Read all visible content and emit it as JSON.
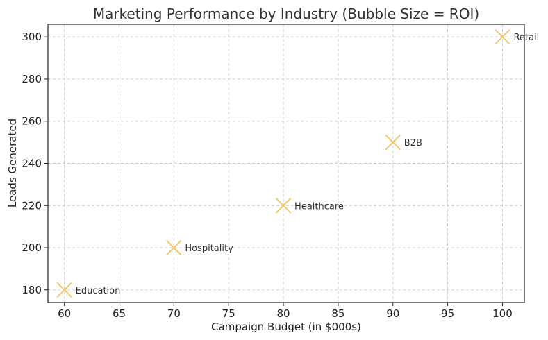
{
  "chart_data": {
    "type": "scatter",
    "title": "Marketing Performance by Industry (Bubble Size = ROI)",
    "xlabel": "Campaign Budget (in $000s)",
    "ylabel": "Leads Generated",
    "xlim": [
      58.5,
      102
    ],
    "ylim": [
      174,
      306
    ],
    "xticks": [
      60,
      65,
      70,
      75,
      80,
      85,
      90,
      95,
      100
    ],
    "yticks": [
      180,
      200,
      220,
      240,
      260,
      280,
      300
    ],
    "grid": true,
    "marker": "x",
    "marker_color": "#F6C76B",
    "points": [
      {
        "label": "Education",
        "x": 60,
        "y": 180
      },
      {
        "label": "Hospitality",
        "x": 70,
        "y": 200
      },
      {
        "label": "Healthcare",
        "x": 80,
        "y": 220
      },
      {
        "label": "B2B",
        "x": 90,
        "y": 250
      },
      {
        "label": "Retail",
        "x": 100,
        "y": 300
      }
    ]
  }
}
